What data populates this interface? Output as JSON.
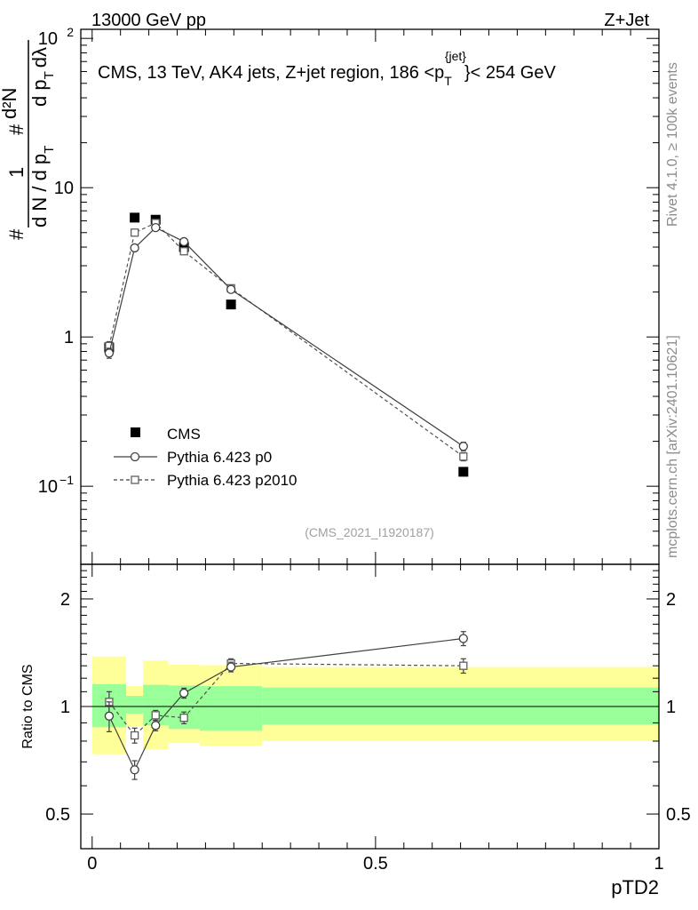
{
  "chart_data": [
    {
      "type": "scatter",
      "panel": "main",
      "header_left": "13000 GeV pp",
      "header_right": "Z+Jet",
      "title": "CMS, 13 TeV, AK4 jets, Z+jet region, 186 <p_T^{jet}< 254 GeV",
      "title_parts": {
        "a": "CMS, 13 TeV, AK4 jets, Z+jet region, 186 <p",
        "sub": "T",
        "sup": "{jet}",
        "b": "}< 254 GeV"
      },
      "ylabel_parts": {
        "hash": "#",
        "one": "1",
        "dnd": "d N / d p",
        "t": "T",
        "hash2": "#",
        "dpt": "d p",
        "t2": "T",
        "d2n": "d²N",
        "dl": "dλ"
      },
      "yscale": "log",
      "ylim": [
        0.03,
        115
      ],
      "xlim": [
        -0.02,
        1.0
      ],
      "yticks": [
        {
          "v": 0.1,
          "label": "10",
          "exp": "−1"
        },
        {
          "v": 1,
          "label": "1"
        },
        {
          "v": 10,
          "label": "10"
        },
        {
          "v": 100,
          "label": "10",
          "exp": "2"
        }
      ],
      "reference": "(CMS_2021_I1920187)",
      "side_top": "Rivet 4.1.0, ≥ 100k events",
      "side_bottom": "mcplots.cern.ch [arXiv:2401.10621]",
      "legend": [
        {
          "name": "CMS",
          "style": "filled-square"
        },
        {
          "name": "Pythia 6.423 p0",
          "style": "solid-circle"
        },
        {
          "name": "Pythia 6.423 p2010",
          "style": "dashed-square"
        }
      ],
      "series": [
        {
          "name": "CMS",
          "x": [
            0.03,
            0.075,
            0.112,
            0.162,
            0.245,
            0.655
          ],
          "y": [
            0.85,
            6.3,
            6.1,
            4.0,
            1.65,
            0.125
          ]
        },
        {
          "name": "Pythia 6.423 p0",
          "x": [
            0.03,
            0.075,
            0.112,
            0.162,
            0.245,
            0.655
          ],
          "y": [
            0.78,
            3.95,
            5.4,
            4.35,
            2.08,
            0.185
          ],
          "err": [
            0.06,
            0.15,
            0.15,
            0.15,
            0.08,
            0.012
          ]
        },
        {
          "name": "Pythia 6.423 p2010",
          "x": [
            0.03,
            0.075,
            0.112,
            0.162,
            0.245,
            0.655
          ],
          "y": [
            0.87,
            5.0,
            5.8,
            3.75,
            2.12,
            0.158
          ],
          "err": [
            0.06,
            0.18,
            0.15,
            0.15,
            0.08,
            0.01
          ]
        }
      ]
    },
    {
      "type": "scatter",
      "panel": "ratio",
      "ylabel": "Ratio to CMS",
      "xlabel": "pTD2",
      "yscale": "log",
      "ylim": [
        0.4,
        2.5
      ],
      "xlim": [
        -0.02,
        1.0
      ],
      "xticks": [
        {
          "v": 0,
          "label": "0"
        },
        {
          "v": 0.5,
          "label": "0.5"
        },
        {
          "v": 1,
          "label": "1"
        }
      ],
      "yticks": [
        {
          "v": 0.5,
          "label": "0.5"
        },
        {
          "v": 1,
          "label": "1"
        },
        {
          "v": 2,
          "label": "2"
        }
      ],
      "bands": [
        {
          "x0": 0.0,
          "x1": 0.06,
          "g": [
            0.875,
            1.155
          ],
          "y": [
            0.735,
            1.38
          ]
        },
        {
          "x0": 0.06,
          "x1": 0.09,
          "g": [
            0.955,
            1.07
          ],
          "y": [
            0.88,
            1.14
          ]
        },
        {
          "x0": 0.09,
          "x1": 0.135,
          "g": [
            0.885,
            1.15
          ],
          "y": [
            0.76,
            1.345
          ]
        },
        {
          "x0": 0.135,
          "x1": 0.19,
          "g": [
            0.865,
            1.145
          ],
          "y": [
            0.79,
            1.31
          ]
        },
        {
          "x0": 0.19,
          "x1": 0.3,
          "g": [
            0.855,
            1.14
          ],
          "y": [
            0.775,
            1.305
          ]
        },
        {
          "x0": 0.3,
          "x1": 1.0,
          "g": [
            0.89,
            1.13
          ],
          "y": [
            0.8,
            1.29
          ]
        }
      ],
      "series": [
        {
          "name": "Pythia 6.423 p0",
          "x": [
            0.03,
            0.075,
            0.112,
            0.162,
            0.245,
            0.655
          ],
          "y": [
            0.94,
            0.665,
            0.885,
            1.09,
            1.29,
            1.55
          ],
          "err": [
            0.09,
            0.04,
            0.03,
            0.035,
            0.04,
            0.07
          ]
        },
        {
          "name": "Pythia 6.423 p2010",
          "x": [
            0.03,
            0.075,
            0.112,
            0.162,
            0.245,
            0.655
          ],
          "y": [
            1.03,
            0.83,
            0.945,
            0.93,
            1.32,
            1.3
          ],
          "err": [
            0.07,
            0.04,
            0.03,
            0.035,
            0.04,
            0.06
          ]
        }
      ]
    }
  ]
}
